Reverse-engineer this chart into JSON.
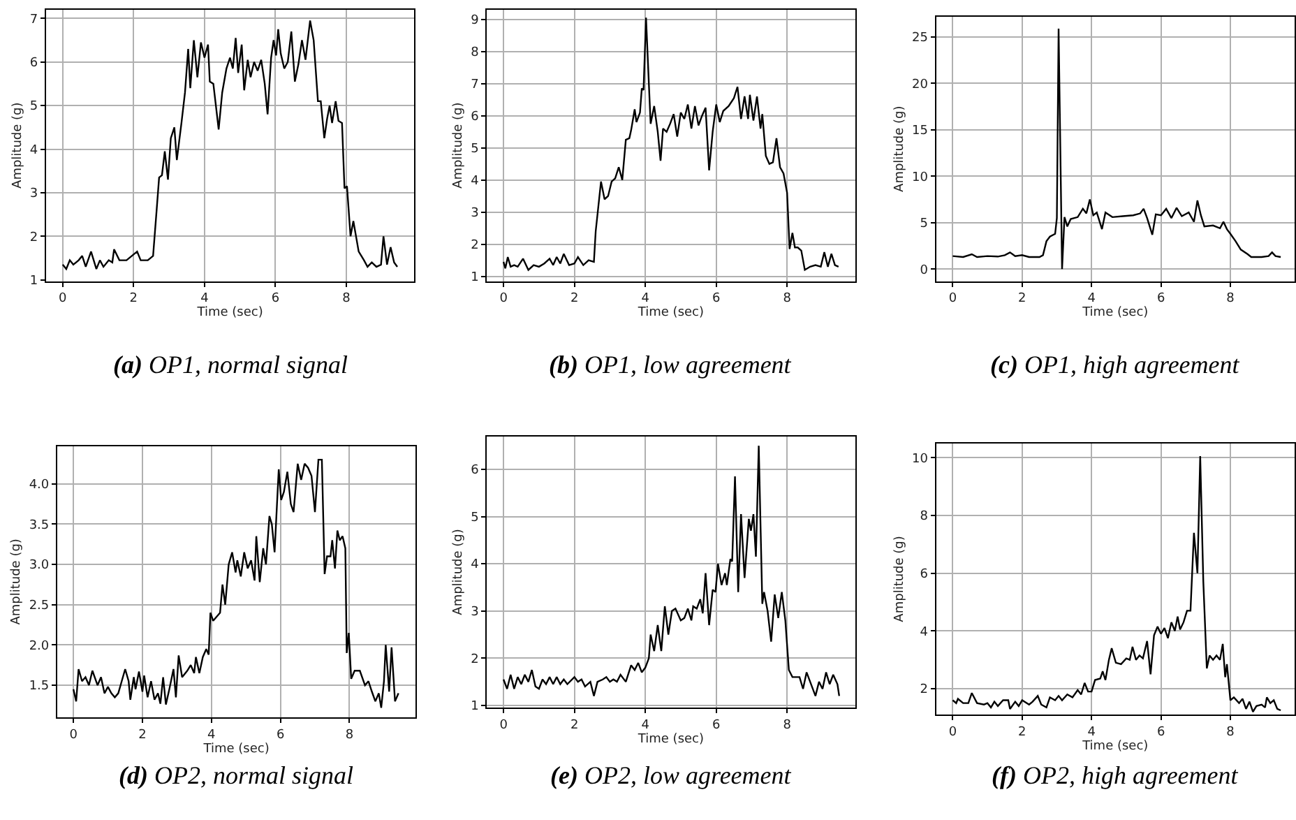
{
  "chart_data": [
    {
      "type": "line",
      "title": "(a) OP1, normal signal",
      "xlabel": "Time (sec)",
      "ylabel": "Amplitude (g)",
      "xlim": [
        -0.47,
        9.92
      ],
      "ylim": [
        0.97,
        7.2
      ],
      "xticks": [
        0,
        2,
        4,
        6,
        8
      ],
      "yticks": [
        1,
        2,
        3,
        4,
        5,
        6,
        7
      ],
      "grid": true,
      "line_style": "solid",
      "series": [
        {
          "color": "#000000",
          "x": [
            0,
            0.1,
            0.2,
            0.3,
            0.45,
            0.55,
            0.65,
            0.8,
            0.95,
            1.05,
            1.15,
            1.3,
            1.4,
            1.45,
            1.6,
            1.8,
            1.95,
            2.1,
            2.2,
            2.4,
            2.55,
            2.65,
            2.72,
            2.8,
            2.88,
            2.97,
            3.05,
            3.15,
            3.22,
            3.35,
            3.45,
            3.54,
            3.6,
            3.7,
            3.8,
            3.9,
            4.0,
            4.1,
            4.15,
            4.25,
            4.4,
            4.5,
            4.62,
            4.72,
            4.8,
            4.88,
            4.95,
            5.05,
            5.12,
            5.22,
            5.3,
            5.4,
            5.5,
            5.6,
            5.7,
            5.78,
            5.88,
            5.95,
            6.02,
            6.08,
            6.15,
            6.25,
            6.35,
            6.45,
            6.55,
            6.65,
            6.75,
            6.85,
            6.98,
            7.08,
            7.2,
            7.28,
            7.38,
            7.46,
            7.53,
            7.6,
            7.7,
            7.78,
            7.88,
            7.95,
            8.02,
            8.12,
            8.2,
            8.35,
            8.5,
            8.6,
            8.72,
            8.85,
            8.98,
            9.05,
            9.15,
            9.25,
            9.35,
            9.44
          ],
          "values": [
            1.35,
            1.25,
            1.45,
            1.35,
            1.45,
            1.55,
            1.3,
            1.65,
            1.25,
            1.45,
            1.3,
            1.45,
            1.4,
            1.7,
            1.45,
            1.45,
            1.55,
            1.65,
            1.45,
            1.45,
            1.55,
            2.6,
            3.35,
            3.4,
            3.95,
            3.3,
            4.25,
            4.5,
            3.75,
            4.6,
            5.3,
            6.3,
            5.4,
            6.5,
            5.65,
            6.45,
            6.1,
            6.4,
            5.55,
            5.5,
            4.45,
            5.3,
            5.85,
            6.1,
            5.85,
            6.55,
            5.75,
            6.4,
            5.35,
            6.05,
            5.65,
            6.0,
            5.8,
            6.05,
            5.5,
            4.8,
            6.1,
            6.5,
            6.15,
            6.75,
            6.2,
            5.85,
            6.0,
            6.7,
            5.55,
            5.95,
            6.5,
            6.05,
            6.95,
            6.5,
            5.1,
            5.1,
            4.25,
            4.7,
            5.0,
            4.6,
            5.1,
            4.65,
            4.6,
            3.1,
            3.15,
            2.0,
            2.35,
            1.65,
            1.45,
            1.3,
            1.4,
            1.3,
            1.35,
            2.0,
            1.35,
            1.75,
            1.4,
            1.3
          ]
        }
      ]
    },
    {
      "type": "line",
      "title": "(b) OP1, low agreement",
      "xlabel": "Time (sec)",
      "ylabel": "Amplitude (g)",
      "xlim": [
        -0.47,
        9.92
      ],
      "ylim": [
        0.85,
        9.3
      ],
      "xticks": [
        0,
        2,
        4,
        6,
        8
      ],
      "yticks": [
        1,
        2,
        3,
        4,
        5,
        6,
        7,
        8,
        9
      ],
      "grid": true,
      "line_style": "solid",
      "series": [
        {
          "color": "#000000",
          "x": [
            0,
            0.05,
            0.12,
            0.2,
            0.3,
            0.4,
            0.55,
            0.7,
            0.85,
            1.0,
            1.15,
            1.3,
            1.4,
            1.5,
            1.6,
            1.7,
            1.85,
            2.0,
            2.1,
            2.25,
            2.4,
            2.55,
            2.6,
            2.75,
            2.85,
            2.95,
            3.05,
            3.15,
            3.25,
            3.35,
            3.45,
            3.55,
            3.6,
            3.7,
            3.75,
            3.85,
            3.9,
            3.95,
            4.02,
            4.1,
            4.15,
            4.25,
            4.35,
            4.43,
            4.5,
            4.6,
            4.7,
            4.8,
            4.9,
            5.0,
            5.1,
            5.2,
            5.3,
            5.4,
            5.5,
            5.6,
            5.7,
            5.8,
            5.9,
            6.0,
            6.1,
            6.2,
            6.35,
            6.5,
            6.6,
            6.7,
            6.8,
            6.9,
            6.95,
            7.05,
            7.15,
            7.25,
            7.3,
            7.4,
            7.5,
            7.6,
            7.7,
            7.8,
            7.9,
            8.0,
            8.07,
            8.15,
            8.22,
            8.3,
            8.4,
            8.5,
            8.65,
            8.8,
            8.95,
            9.05,
            9.15,
            9.25,
            9.35,
            9.45
          ],
          "values": [
            1.45,
            1.25,
            1.6,
            1.3,
            1.35,
            1.3,
            1.55,
            1.2,
            1.35,
            1.3,
            1.4,
            1.55,
            1.35,
            1.6,
            1.4,
            1.7,
            1.35,
            1.4,
            1.6,
            1.35,
            1.5,
            1.45,
            2.4,
            3.95,
            3.4,
            3.5,
            3.95,
            4.05,
            4.4,
            4.0,
            5.25,
            5.3,
            5.55,
            6.2,
            5.8,
            6.1,
            6.85,
            6.8,
            9.05,
            7.0,
            5.75,
            6.3,
            5.5,
            4.6,
            5.6,
            5.5,
            5.75,
            6.05,
            5.35,
            6.1,
            5.9,
            6.35,
            5.6,
            6.3,
            5.7,
            6.0,
            6.25,
            4.3,
            5.5,
            6.35,
            5.8,
            6.15,
            6.3,
            6.55,
            6.9,
            5.9,
            6.6,
            5.9,
            6.65,
            5.85,
            6.6,
            5.6,
            6.05,
            4.75,
            4.5,
            4.55,
            5.3,
            4.4,
            4.2,
            3.6,
            1.85,
            2.35,
            1.9,
            1.9,
            1.8,
            1.2,
            1.3,
            1.35,
            1.3,
            1.75,
            1.3,
            1.7,
            1.35,
            1.3
          ]
        }
      ]
    },
    {
      "type": "line",
      "title": "(c) OP1, high agreement",
      "xlabel": "Time (sec)",
      "ylabel": "Amplitude (g)",
      "xlim": [
        -0.48,
        9.85
      ],
      "ylim": [
        -1.3,
        27.2
      ],
      "xticks": [
        0,
        2,
        4,
        6,
        8
      ],
      "yticks": [
        0,
        5,
        10,
        15,
        20,
        25
      ],
      "grid": true,
      "line_style": "solid",
      "series": [
        {
          "color": "#000000",
          "x": [
            0,
            0.3,
            0.55,
            0.7,
            1.0,
            1.3,
            1.5,
            1.65,
            1.8,
            2.0,
            2.2,
            2.5,
            2.6,
            2.7,
            2.8,
            2.95,
            3.0,
            3.05,
            3.15,
            3.22,
            3.3,
            3.4,
            3.6,
            3.75,
            3.85,
            3.95,
            4.05,
            4.15,
            4.3,
            4.4,
            4.6,
            4.9,
            5.2,
            5.4,
            5.5,
            5.6,
            5.75,
            5.85,
            6.0,
            6.15,
            6.3,
            6.45,
            6.6,
            6.8,
            6.95,
            7.05,
            7.15,
            7.25,
            7.5,
            7.7,
            7.8,
            7.9,
            8.0,
            8.15,
            8.3,
            8.5,
            8.6,
            8.9,
            9.1,
            9.2,
            9.3,
            9.45
          ],
          "values": [
            1.4,
            1.3,
            1.6,
            1.3,
            1.4,
            1.35,
            1.5,
            1.8,
            1.4,
            1.5,
            1.3,
            1.3,
            1.5,
            3.0,
            3.5,
            3.8,
            5.5,
            25.9,
            0,
            5.6,
            4.6,
            5.4,
            5.6,
            6.5,
            6.0,
            7.5,
            5.8,
            6.1,
            4.3,
            6.1,
            5.6,
            5.7,
            5.8,
            6.0,
            6.5,
            5.5,
            3.7,
            5.9,
            5.8,
            6.5,
            5.5,
            6.6,
            5.7,
            6.1,
            5.1,
            7.4,
            5.8,
            4.6,
            4.7,
            4.4,
            5.1,
            4.3,
            3.8,
            3.0,
            2.1,
            1.6,
            1.3,
            1.3,
            1.4,
            1.8,
            1.4,
            1.3
          ]
        }
      ]
    },
    {
      "type": "line",
      "title": "(d) OP2, normal signal",
      "xlabel": "Time (sec)",
      "ylabel": "Amplitude (g)",
      "xlim": [
        -0.47,
        9.92
      ],
      "ylim": [
        1.1,
        4.47
      ],
      "xticks": [
        0,
        2,
        4,
        6,
        8
      ],
      "yticks": [
        {
          "value": 1.5,
          "label": "1.5"
        },
        {
          "value": 2,
          "label": "2.0"
        },
        {
          "value": 2.5,
          "label": "2.5"
        },
        {
          "value": 3,
          "label": "3.0"
        },
        {
          "value": 3.5,
          "label": "3.5"
        },
        {
          "value": 4,
          "label": "4.0"
        }
      ],
      "grid": true,
      "line_style": "solid",
      "series": [
        {
          "color": "#000000",
          "x": [
            0,
            0.08,
            0.15,
            0.25,
            0.35,
            0.45,
            0.55,
            0.7,
            0.8,
            0.9,
            1.0,
            1.1,
            1.2,
            1.3,
            1.4,
            1.5,
            1.6,
            1.65,
            1.75,
            1.8,
            1.9,
            2.0,
            2.05,
            2.15,
            2.25,
            2.35,
            2.45,
            2.52,
            2.6,
            2.68,
            2.78,
            2.9,
            2.97,
            3.05,
            3.15,
            3.3,
            3.4,
            3.5,
            3.55,
            3.65,
            3.75,
            3.85,
            3.92,
            3.97,
            4.05,
            4.15,
            4.25,
            4.32,
            4.4,
            4.5,
            4.6,
            4.7,
            4.75,
            4.85,
            4.95,
            5.05,
            5.15,
            5.25,
            5.3,
            5.4,
            5.5,
            5.58,
            5.68,
            5.75,
            5.83,
            5.95,
            6.02,
            6.1,
            6.2,
            6.3,
            6.38,
            6.5,
            6.6,
            6.7,
            6.8,
            6.9,
            7.0,
            7.1,
            7.2,
            7.28,
            7.35,
            7.45,
            7.5,
            7.58,
            7.65,
            7.72,
            7.8,
            7.88,
            7.92,
            7.98,
            8.05,
            8.15,
            8.3,
            8.45,
            8.55,
            8.65,
            8.75,
            8.85,
            8.92,
            9.0,
            9.05,
            9.15,
            9.22,
            9.32,
            9.42
          ],
          "values": [
            1.45,
            1.3,
            1.7,
            1.55,
            1.6,
            1.5,
            1.68,
            1.5,
            1.6,
            1.4,
            1.48,
            1.4,
            1.35,
            1.4,
            1.55,
            1.7,
            1.55,
            1.32,
            1.6,
            1.45,
            1.67,
            1.42,
            1.62,
            1.35,
            1.55,
            1.32,
            1.4,
            1.27,
            1.6,
            1.26,
            1.45,
            1.7,
            1.35,
            1.87,
            1.6,
            1.68,
            1.75,
            1.65,
            1.85,
            1.65,
            1.85,
            1.95,
            1.88,
            2.4,
            2.3,
            2.35,
            2.4,
            2.75,
            2.5,
            3.0,
            3.15,
            2.9,
            3.05,
            2.85,
            3.15,
            2.95,
            3.05,
            2.8,
            3.35,
            2.78,
            3.2,
            3.0,
            3.6,
            3.5,
            3.15,
            4.18,
            3.8,
            3.9,
            4.15,
            3.75,
            3.65,
            4.25,
            4.05,
            4.25,
            4.2,
            4.1,
            3.65,
            4.3,
            4.3,
            2.88,
            3.1,
            3.1,
            3.3,
            2.95,
            3.42,
            3.3,
            3.35,
            3.2,
            1.9,
            2.15,
            1.58,
            1.68,
            1.68,
            1.5,
            1.55,
            1.42,
            1.3,
            1.4,
            1.22,
            1.55,
            2.0,
            1.42,
            1.97,
            1.3,
            1.4
          ]
        }
      ]
    },
    {
      "type": "line",
      "title": "(e) OP2, low agreement",
      "xlabel": "Time (sec)",
      "ylabel": "Amplitude (g)",
      "xlim": [
        -0.47,
        9.92
      ],
      "ylim": [
        0.95,
        6.7
      ],
      "xticks": [
        0,
        2,
        4,
        6,
        8
      ],
      "yticks": [
        1,
        2,
        3,
        4,
        5,
        6
      ],
      "grid": true,
      "line_style": "solid",
      "series": [
        {
          "color": "#000000",
          "x": [
            0,
            0.1,
            0.2,
            0.3,
            0.4,
            0.5,
            0.6,
            0.7,
            0.8,
            0.9,
            1.0,
            1.1,
            1.2,
            1.3,
            1.4,
            1.5,
            1.6,
            1.7,
            1.8,
            2.0,
            2.1,
            2.2,
            2.3,
            2.45,
            2.55,
            2.65,
            2.8,
            2.9,
            3.0,
            3.1,
            3.2,
            3.3,
            3.45,
            3.6,
            3.7,
            3.8,
            3.9,
            4.0,
            4.1,
            4.15,
            4.25,
            4.35,
            4.45,
            4.55,
            4.65,
            4.75,
            4.85,
            5.0,
            5.1,
            5.2,
            5.3,
            5.35,
            5.45,
            5.55,
            5.62,
            5.7,
            5.8,
            5.9,
            5.98,
            6.05,
            6.15,
            6.25,
            6.3,
            6.4,
            6.45,
            6.53,
            6.62,
            6.7,
            6.8,
            6.92,
            6.98,
            7.05,
            7.12,
            7.2,
            7.3,
            7.35,
            7.45,
            7.55,
            7.65,
            7.75,
            7.85,
            7.95,
            8.05,
            8.15,
            8.35,
            8.45,
            8.55,
            8.65,
            8.8,
            8.9,
            9.0,
            9.1,
            9.2,
            9.3,
            9.42,
            9.47
          ],
          "values": [
            1.55,
            1.35,
            1.65,
            1.35,
            1.6,
            1.45,
            1.65,
            1.5,
            1.75,
            1.4,
            1.35,
            1.55,
            1.45,
            1.6,
            1.45,
            1.6,
            1.45,
            1.55,
            1.45,
            1.6,
            1.5,
            1.55,
            1.4,
            1.5,
            1.2,
            1.5,
            1.55,
            1.6,
            1.5,
            1.55,
            1.5,
            1.65,
            1.5,
            1.85,
            1.75,
            1.9,
            1.7,
            1.8,
            2.0,
            2.5,
            2.15,
            2.7,
            2.15,
            3.1,
            2.5,
            3.0,
            3.05,
            2.8,
            2.85,
            3.05,
            2.8,
            3.1,
            3.05,
            3.25,
            2.95,
            3.8,
            2.7,
            3.45,
            3.4,
            4.0,
            3.55,
            3.8,
            3.55,
            4.1,
            4.05,
            5.85,
            3.4,
            5.05,
            3.7,
            4.95,
            4.7,
            5.05,
            4.15,
            6.5,
            3.15,
            3.4,
            3.0,
            2.35,
            3.35,
            2.85,
            3.4,
            2.8,
            1.75,
            1.6,
            1.6,
            1.35,
            1.7,
            1.5,
            1.2,
            1.5,
            1.35,
            1.7,
            1.45,
            1.65,
            1.45,
            1.2
          ]
        }
      ]
    },
    {
      "type": "line",
      "title": "(f) OP2, high agreement",
      "xlabel": "Time (sec)",
      "ylabel": "Amplitude (g)",
      "xlim": [
        -0.48,
        9.85
      ],
      "ylim": [
        1.1,
        10.5
      ],
      "xticks": [
        0,
        2,
        4,
        6,
        8
      ],
      "yticks": [
        2,
        4,
        6,
        8,
        10
      ],
      "grid": true,
      "line_style": "solid",
      "series": [
        {
          "color": "#000000",
          "x": [
            0,
            0.1,
            0.15,
            0.3,
            0.45,
            0.55,
            0.7,
            0.9,
            1.0,
            1.1,
            1.2,
            1.3,
            1.45,
            1.6,
            1.65,
            1.8,
            1.9,
            2.0,
            2.2,
            2.3,
            2.45,
            2.55,
            2.7,
            2.8,
            2.95,
            3.05,
            3.15,
            3.3,
            3.45,
            3.6,
            3.7,
            3.8,
            3.9,
            4.0,
            4.1,
            4.25,
            4.32,
            4.4,
            4.5,
            4.58,
            4.7,
            4.85,
            5.0,
            5.1,
            5.18,
            5.28,
            5.38,
            5.48,
            5.6,
            5.7,
            5.8,
            5.9,
            6.0,
            6.1,
            6.2,
            6.3,
            6.4,
            6.48,
            6.55,
            6.65,
            6.75,
            6.85,
            6.95,
            7.05,
            7.13,
            7.22,
            7.32,
            7.4,
            7.5,
            7.6,
            7.7,
            7.78,
            7.85,
            7.9,
            8.0,
            8.1,
            8.25,
            8.35,
            8.45,
            8.55,
            8.65,
            8.75,
            8.9,
            9.0,
            9.05,
            9.15,
            9.25,
            9.35,
            9.45
          ],
          "values": [
            1.6,
            1.5,
            1.65,
            1.5,
            1.5,
            1.85,
            1.5,
            1.45,
            1.5,
            1.35,
            1.55,
            1.4,
            1.6,
            1.6,
            1.3,
            1.55,
            1.4,
            1.6,
            1.45,
            1.55,
            1.75,
            1.45,
            1.35,
            1.7,
            1.6,
            1.75,
            1.6,
            1.8,
            1.7,
            1.95,
            1.8,
            2.2,
            1.9,
            1.9,
            2.3,
            2.35,
            2.6,
            2.3,
            3.0,
            3.4,
            2.9,
            2.85,
            3.05,
            3.0,
            3.45,
            3.0,
            3.15,
            3.05,
            3.65,
            2.5,
            3.85,
            4.15,
            3.9,
            4.1,
            3.75,
            4.3,
            4.0,
            4.5,
            4.05,
            4.3,
            4.7,
            4.7,
            7.4,
            6.0,
            10.05,
            5.7,
            2.7,
            3.15,
            3.0,
            3.15,
            3.0,
            3.55,
            2.4,
            2.85,
            1.6,
            1.7,
            1.5,
            1.65,
            1.3,
            1.55,
            1.2,
            1.4,
            1.45,
            1.35,
            1.7,
            1.5,
            1.6,
            1.3,
            1.25
          ]
        }
      ]
    }
  ]
}
